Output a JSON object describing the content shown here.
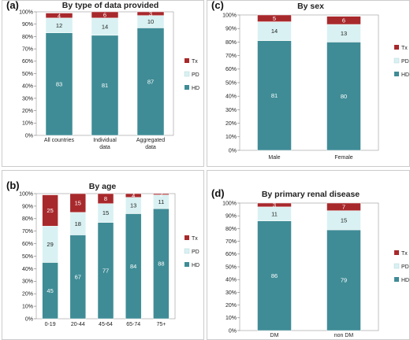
{
  "colors": {
    "Tx": "#a8292c",
    "PD": "#d9f1f2",
    "HD": "#3f8c96",
    "frame": "#bfbfbf"
  },
  "y_ticks": [
    "0%",
    "10%",
    "20%",
    "30%",
    "40%",
    "50%",
    "60%",
    "70%",
    "80%",
    "90%",
    "100%"
  ],
  "chart_data": [
    {
      "panel": "(a)",
      "type": "bar",
      "stacked": true,
      "title": "By type of data provided",
      "categories": [
        "All countries",
        "Individual data",
        "Aggregated data"
      ],
      "category_lines": [
        [
          "All countries"
        ],
        [
          "Individual",
          "data"
        ],
        [
          "Aggregated",
          "data"
        ]
      ],
      "series": [
        {
          "name": "HD",
          "values": [
            83,
            81,
            87
          ]
        },
        {
          "name": "PD",
          "values": [
            12,
            14,
            10
          ]
        },
        {
          "name": "Tx",
          "values": [
            4,
            6,
            3
          ]
        }
      ],
      "ylim": [
        0,
        100
      ],
      "legend": "right"
    },
    {
      "panel": "(b)",
      "type": "bar",
      "stacked": true,
      "title": "By age",
      "categories": [
        "0-19",
        "20-44",
        "45-64",
        "65-74",
        "75+"
      ],
      "category_lines": [
        [
          "0-19"
        ],
        [
          "20-44"
        ],
        [
          "45-64"
        ],
        [
          "65-74"
        ],
        [
          "75+"
        ]
      ],
      "series": [
        {
          "name": "HD",
          "values": [
            45,
            67,
            77,
            84,
            88
          ]
        },
        {
          "name": "PD",
          "values": [
            29,
            18,
            15,
            13,
            11
          ]
        },
        {
          "name": "Tx",
          "values": [
            25,
            15,
            8,
            4,
            2
          ]
        }
      ],
      "ylim": [
        0,
        100
      ],
      "legend": "right"
    },
    {
      "panel": "(c)",
      "type": "bar",
      "stacked": true,
      "title": "By sex",
      "categories": [
        "Male",
        "Female"
      ],
      "category_lines": [
        [
          "Male"
        ],
        [
          "Female"
        ]
      ],
      "series": [
        {
          "name": "HD",
          "values": [
            81,
            80
          ]
        },
        {
          "name": "PD",
          "values": [
            14,
            13
          ]
        },
        {
          "name": "Tx",
          "values": [
            5,
            6
          ]
        }
      ],
      "ylim": [
        0,
        100
      ],
      "legend": "right"
    },
    {
      "panel": "(d)",
      "type": "bar",
      "stacked": true,
      "title": "By primary renal disease",
      "categories": [
        "DM",
        "non DM"
      ],
      "category_lines": [
        [
          "DM"
        ],
        [
          "non DM"
        ]
      ],
      "series": [
        {
          "name": "HD",
          "values": [
            86,
            79
          ]
        },
        {
          "name": "PD",
          "values": [
            11,
            15
          ]
        },
        {
          "name": "Tx",
          "values": [
            3,
            7
          ]
        }
      ],
      "ylim": [
        0,
        100
      ],
      "legend": "right"
    }
  ]
}
